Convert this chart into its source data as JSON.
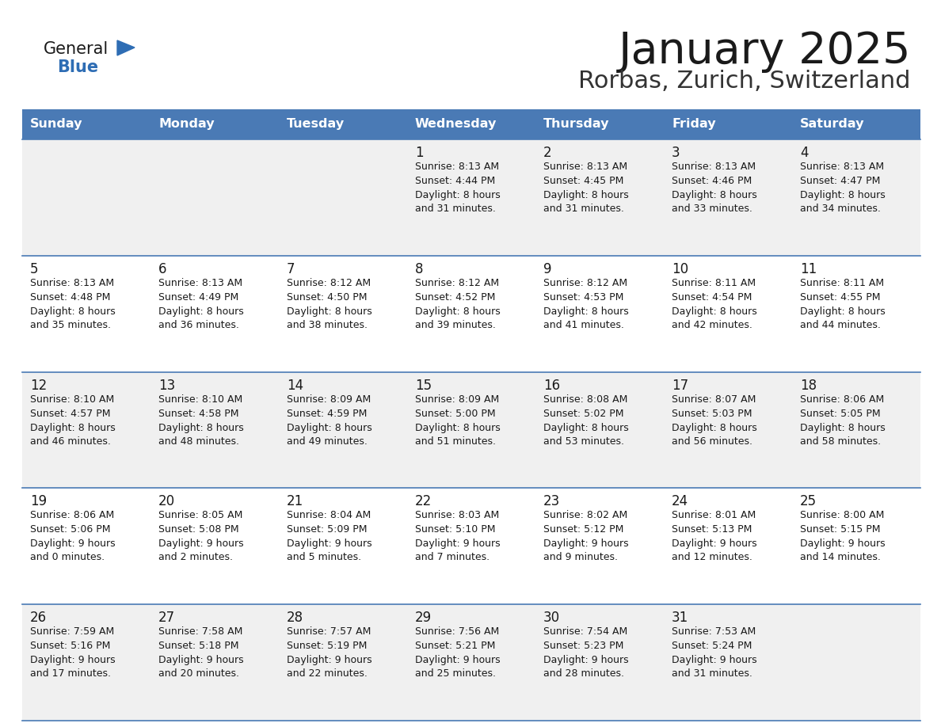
{
  "title": "January 2025",
  "subtitle": "Rorbas, Zurich, Switzerland",
  "days_of_week": [
    "Sunday",
    "Monday",
    "Tuesday",
    "Wednesday",
    "Thursday",
    "Friday",
    "Saturday"
  ],
  "header_bg": "#4a7ab5",
  "header_text": "#ffffff",
  "cell_bg_odd": "#f0f0f0",
  "cell_bg_even": "#ffffff",
  "cell_border": "#4a7ab5",
  "text_color": "#1a1a1a",
  "title_color": "#1a1a1a",
  "subtitle_color": "#333333",
  "logo_general_color": "#1a1a1a",
  "logo_blue_color": "#2e6db4",
  "calendar": [
    [
      null,
      null,
      null,
      {
        "day": "1",
        "sunrise": "8:13 AM",
        "sunset": "4:44 PM",
        "daylight_h": "8 hours",
        "daylight_m": "and 31 minutes."
      },
      {
        "day": "2",
        "sunrise": "8:13 AM",
        "sunset": "4:45 PM",
        "daylight_h": "8 hours",
        "daylight_m": "and 31 minutes."
      },
      {
        "day": "3",
        "sunrise": "8:13 AM",
        "sunset": "4:46 PM",
        "daylight_h": "8 hours",
        "daylight_m": "and 33 minutes."
      },
      {
        "day": "4",
        "sunrise": "8:13 AM",
        "sunset": "4:47 PM",
        "daylight_h": "8 hours",
        "daylight_m": "and 34 minutes."
      }
    ],
    [
      {
        "day": "5",
        "sunrise": "8:13 AM",
        "sunset": "4:48 PM",
        "daylight_h": "8 hours",
        "daylight_m": "and 35 minutes."
      },
      {
        "day": "6",
        "sunrise": "8:13 AM",
        "sunset": "4:49 PM",
        "daylight_h": "8 hours",
        "daylight_m": "and 36 minutes."
      },
      {
        "day": "7",
        "sunrise": "8:12 AM",
        "sunset": "4:50 PM",
        "daylight_h": "8 hours",
        "daylight_m": "and 38 minutes."
      },
      {
        "day": "8",
        "sunrise": "8:12 AM",
        "sunset": "4:52 PM",
        "daylight_h": "8 hours",
        "daylight_m": "and 39 minutes."
      },
      {
        "day": "9",
        "sunrise": "8:12 AM",
        "sunset": "4:53 PM",
        "daylight_h": "8 hours",
        "daylight_m": "and 41 minutes."
      },
      {
        "day": "10",
        "sunrise": "8:11 AM",
        "sunset": "4:54 PM",
        "daylight_h": "8 hours",
        "daylight_m": "and 42 minutes."
      },
      {
        "day": "11",
        "sunrise": "8:11 AM",
        "sunset": "4:55 PM",
        "daylight_h": "8 hours",
        "daylight_m": "and 44 minutes."
      }
    ],
    [
      {
        "day": "12",
        "sunrise": "8:10 AM",
        "sunset": "4:57 PM",
        "daylight_h": "8 hours",
        "daylight_m": "and 46 minutes."
      },
      {
        "day": "13",
        "sunrise": "8:10 AM",
        "sunset": "4:58 PM",
        "daylight_h": "8 hours",
        "daylight_m": "and 48 minutes."
      },
      {
        "day": "14",
        "sunrise": "8:09 AM",
        "sunset": "4:59 PM",
        "daylight_h": "8 hours",
        "daylight_m": "and 49 minutes."
      },
      {
        "day": "15",
        "sunrise": "8:09 AM",
        "sunset": "5:00 PM",
        "daylight_h": "8 hours",
        "daylight_m": "and 51 minutes."
      },
      {
        "day": "16",
        "sunrise": "8:08 AM",
        "sunset": "5:02 PM",
        "daylight_h": "8 hours",
        "daylight_m": "and 53 minutes."
      },
      {
        "day": "17",
        "sunrise": "8:07 AM",
        "sunset": "5:03 PM",
        "daylight_h": "8 hours",
        "daylight_m": "and 56 minutes."
      },
      {
        "day": "18",
        "sunrise": "8:06 AM",
        "sunset": "5:05 PM",
        "daylight_h": "8 hours",
        "daylight_m": "and 58 minutes."
      }
    ],
    [
      {
        "day": "19",
        "sunrise": "8:06 AM",
        "sunset": "5:06 PM",
        "daylight_h": "9 hours",
        "daylight_m": "and 0 minutes."
      },
      {
        "day": "20",
        "sunrise": "8:05 AM",
        "sunset": "5:08 PM",
        "daylight_h": "9 hours",
        "daylight_m": "and 2 minutes."
      },
      {
        "day": "21",
        "sunrise": "8:04 AM",
        "sunset": "5:09 PM",
        "daylight_h": "9 hours",
        "daylight_m": "and 5 minutes."
      },
      {
        "day": "22",
        "sunrise": "8:03 AM",
        "sunset": "5:10 PM",
        "daylight_h": "9 hours",
        "daylight_m": "and 7 minutes."
      },
      {
        "day": "23",
        "sunrise": "8:02 AM",
        "sunset": "5:12 PM",
        "daylight_h": "9 hours",
        "daylight_m": "and 9 minutes."
      },
      {
        "day": "24",
        "sunrise": "8:01 AM",
        "sunset": "5:13 PM",
        "daylight_h": "9 hours",
        "daylight_m": "and 12 minutes."
      },
      {
        "day": "25",
        "sunrise": "8:00 AM",
        "sunset": "5:15 PM",
        "daylight_h": "9 hours",
        "daylight_m": "and 14 minutes."
      }
    ],
    [
      {
        "day": "26",
        "sunrise": "7:59 AM",
        "sunset": "5:16 PM",
        "daylight_h": "9 hours",
        "daylight_m": "and 17 minutes."
      },
      {
        "day": "27",
        "sunrise": "7:58 AM",
        "sunset": "5:18 PM",
        "daylight_h": "9 hours",
        "daylight_m": "and 20 minutes."
      },
      {
        "day": "28",
        "sunrise": "7:57 AM",
        "sunset": "5:19 PM",
        "daylight_h": "9 hours",
        "daylight_m": "and 22 minutes."
      },
      {
        "day": "29",
        "sunrise": "7:56 AM",
        "sunset": "5:21 PM",
        "daylight_h": "9 hours",
        "daylight_m": "and 25 minutes."
      },
      {
        "day": "30",
        "sunrise": "7:54 AM",
        "sunset": "5:23 PM",
        "daylight_h": "9 hours",
        "daylight_m": "and 28 minutes."
      },
      {
        "day": "31",
        "sunrise": "7:53 AM",
        "sunset": "5:24 PM",
        "daylight_h": "9 hours",
        "daylight_m": "and 31 minutes."
      },
      null
    ]
  ]
}
